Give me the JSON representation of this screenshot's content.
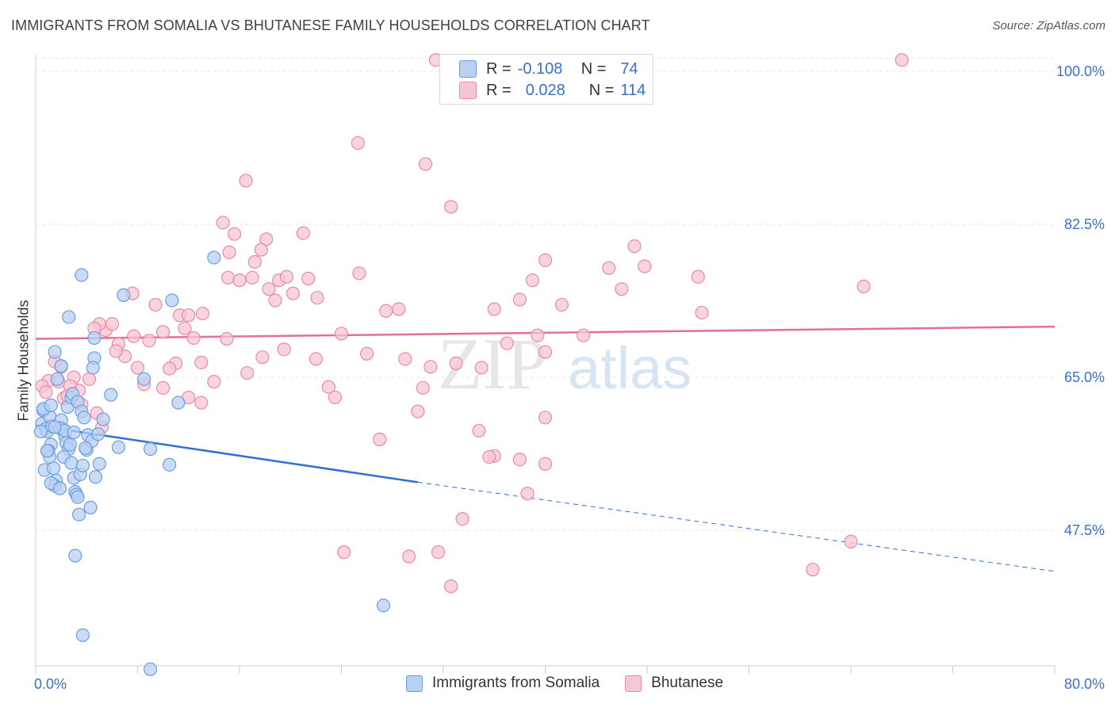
{
  "title": "IMMIGRANTS FROM SOMALIA VS BHUTANESE FAMILY HOUSEHOLDS CORRELATION CHART",
  "source": "Source: ZipAtlas.com",
  "watermark": {
    "zip": "ZIP",
    "atlas": "atlas"
  },
  "legend": {
    "rows": [
      {
        "r_label": "R =",
        "r_value": "-0.108",
        "n_label": "N =",
        "n_value": "74"
      },
      {
        "r_label": "R =",
        "r_value": "0.028",
        "n_label": "N =",
        "n_value": "114"
      }
    ]
  },
  "bottom_legend": [
    "Immigrants from Somalia",
    "Bhutanese"
  ],
  "chart_data": {
    "type": "scatter",
    "title": "IMMIGRANTS FROM SOMALIA VS BHUTANESE FAMILY HOUSEHOLDS CORRELATION CHART",
    "ylabel": "Family Households",
    "xlabel": "",
    "xlim": [
      0,
      80
    ],
    "ylim": [
      32,
      102
    ],
    "x_tick_labels": [
      "0.0%",
      "80.0%"
    ],
    "y_ticks": [
      47.5,
      65.0,
      82.5,
      100.0
    ],
    "y_tick_labels": [
      "47.5%",
      "65.0%",
      "82.5%",
      "100.0%"
    ],
    "grid": true,
    "legend_position": "top-center",
    "series": [
      {
        "name": "Immigrants from Somalia",
        "color": "#6b9de0",
        "fill": "#b8d0f2",
        "r": -0.108,
        "n": 74,
        "trend": {
          "x0": 0.0,
          "y0": 59.5,
          "x1": 30.0,
          "y1": 53.0,
          "dash_to_x": 80.0,
          "dash_to_y": 42.8
        },
        "points": [
          [
            0.5,
            59.7
          ],
          [
            0.6,
            61.2
          ],
          [
            0.8,
            59.1
          ],
          [
            0.9,
            58.8
          ],
          [
            1.1,
            60.5
          ],
          [
            1.2,
            57.3
          ],
          [
            1.3,
            59.4
          ],
          [
            1.0,
            56.6
          ],
          [
            0.7,
            54.4
          ],
          [
            1.4,
            54.6
          ],
          [
            1.6,
            53.2
          ],
          [
            1.5,
            52.6
          ],
          [
            1.2,
            52.9
          ],
          [
            2.0,
            60.1
          ],
          [
            2.1,
            59.0
          ],
          [
            2.3,
            58.3
          ],
          [
            2.4,
            57.5
          ],
          [
            2.6,
            56.8
          ],
          [
            2.2,
            55.9
          ],
          [
            2.8,
            55.2
          ],
          [
            3.0,
            53.5
          ],
          [
            3.1,
            51.9
          ],
          [
            3.2,
            51.6
          ],
          [
            3.4,
            49.3
          ],
          [
            3.5,
            53.9
          ],
          [
            3.7,
            54.9
          ],
          [
            4.0,
            56.7
          ],
          [
            4.3,
            50.1
          ],
          [
            2.5,
            61.6
          ],
          [
            2.8,
            62.7
          ],
          [
            2.9,
            63.1
          ],
          [
            3.3,
            62.2
          ],
          [
            3.6,
            61.1
          ],
          [
            3.8,
            60.4
          ],
          [
            4.1,
            58.4
          ],
          [
            4.4,
            57.7
          ],
          [
            1.7,
            64.8
          ],
          [
            2.0,
            66.3
          ],
          [
            1.5,
            67.9
          ],
          [
            2.6,
            71.9
          ],
          [
            4.6,
            69.5
          ],
          [
            3.6,
            76.7
          ],
          [
            6.9,
            74.4
          ],
          [
            10.7,
            73.8
          ],
          [
            14.0,
            78.7
          ],
          [
            4.6,
            67.2
          ],
          [
            4.5,
            66.1
          ],
          [
            8.5,
            64.8
          ],
          [
            11.2,
            62.1
          ],
          [
            5.9,
            63.0
          ],
          [
            0.6,
            61.4
          ],
          [
            1.2,
            61.8
          ],
          [
            1.9,
            59.2
          ],
          [
            2.7,
            57.3
          ],
          [
            3.9,
            56.9
          ],
          [
            5.0,
            55.1
          ],
          [
            6.5,
            57.0
          ],
          [
            9.0,
            56.8
          ],
          [
            10.5,
            55.0
          ],
          [
            4.7,
            53.6
          ],
          [
            3.3,
            51.3
          ],
          [
            1.9,
            52.3
          ],
          [
            1.1,
            55.9
          ],
          [
            0.9,
            56.6
          ],
          [
            2.3,
            58.9
          ],
          [
            3.0,
            58.7
          ],
          [
            1.5,
            59.3
          ],
          [
            0.4,
            58.8
          ],
          [
            4.9,
            58.5
          ],
          [
            27.3,
            38.9
          ],
          [
            3.1,
            44.6
          ],
          [
            3.7,
            35.5
          ],
          [
            9.0,
            31.6
          ],
          [
            5.3,
            60.2
          ]
        ]
      },
      {
        "name": "Bhutanese",
        "color": "#e98aa6",
        "fill": "#f7c6d4",
        "r": 0.028,
        "n": 114,
        "trend": {
          "x0": 0.0,
          "y0": 69.4,
          "x1": 80.0,
          "y1": 70.8
        },
        "points": [
          [
            31.4,
            101.3
          ],
          [
            43.0,
            101.2
          ],
          [
            68.0,
            101.3
          ],
          [
            25.3,
            91.8
          ],
          [
            30.6,
            89.4
          ],
          [
            32.6,
            84.5
          ],
          [
            16.5,
            87.5
          ],
          [
            14.7,
            82.7
          ],
          [
            15.6,
            81.4
          ],
          [
            18.1,
            80.8
          ],
          [
            21.0,
            81.5
          ],
          [
            15.2,
            79.3
          ],
          [
            17.2,
            78.2
          ],
          [
            17.7,
            79.6
          ],
          [
            9.4,
            73.3
          ],
          [
            10.0,
            70.2
          ],
          [
            11.3,
            72.1
          ],
          [
            13.1,
            72.3
          ],
          [
            15.1,
            76.4
          ],
          [
            16.0,
            76.1
          ],
          [
            17.0,
            76.4
          ],
          [
            18.3,
            75.1
          ],
          [
            18.8,
            73.8
          ],
          [
            19.1,
            76.1
          ],
          [
            19.7,
            76.5
          ],
          [
            20.2,
            74.6
          ],
          [
            21.4,
            76.3
          ],
          [
            22.1,
            74.1
          ],
          [
            25.4,
            76.9
          ],
          [
            27.5,
            72.6
          ],
          [
            28.5,
            72.8
          ],
          [
            24.0,
            70.0
          ],
          [
            19.5,
            68.2
          ],
          [
            22.0,
            67.1
          ],
          [
            26.0,
            67.7
          ],
          [
            29.0,
            67.1
          ],
          [
            31.0,
            66.2
          ],
          [
            33.0,
            66.6
          ],
          [
            35.0,
            66.1
          ],
          [
            37.0,
            68.9
          ],
          [
            36.0,
            72.8
          ],
          [
            38.0,
            73.9
          ],
          [
            39.0,
            76.1
          ],
          [
            40.0,
            78.4
          ],
          [
            39.4,
            69.8
          ],
          [
            41.3,
            73.3
          ],
          [
            40.0,
            67.9
          ],
          [
            43.0,
            69.8
          ],
          [
            45.0,
            77.5
          ],
          [
            47.0,
            80.0
          ],
          [
            47.8,
            77.7
          ],
          [
            46.0,
            75.1
          ],
          [
            52.0,
            76.5
          ],
          [
            52.3,
            72.4
          ],
          [
            40.0,
            60.4
          ],
          [
            36.0,
            56.0
          ],
          [
            38.0,
            55.6
          ],
          [
            38.6,
            51.7
          ],
          [
            40.0,
            55.1
          ],
          [
            30.0,
            61.1
          ],
          [
            27.0,
            57.9
          ],
          [
            13.0,
            66.7
          ],
          [
            11.0,
            66.6
          ],
          [
            10.0,
            63.8
          ],
          [
            8.5,
            64.2
          ],
          [
            8.0,
            66.1
          ],
          [
            7.0,
            67.4
          ],
          [
            6.5,
            68.8
          ],
          [
            5.5,
            70.4
          ],
          [
            5.0,
            71.1
          ],
          [
            4.6,
            70.6
          ],
          [
            6.0,
            71.1
          ],
          [
            7.6,
            74.6
          ],
          [
            12.0,
            72.1
          ],
          [
            11.7,
            70.6
          ],
          [
            15.0,
            69.4
          ],
          [
            16.6,
            65.5
          ],
          [
            14.0,
            64.5
          ],
          [
            17.8,
            67.3
          ],
          [
            13.0,
            62.1
          ],
          [
            12.0,
            62.7
          ],
          [
            3.0,
            65.0
          ],
          [
            2.0,
            66.2
          ],
          [
            1.5,
            66.8
          ],
          [
            1.0,
            64.6
          ],
          [
            0.5,
            64.0
          ],
          [
            0.8,
            63.3
          ],
          [
            2.2,
            62.6
          ],
          [
            3.4,
            63.5
          ],
          [
            4.8,
            60.9
          ],
          [
            5.2,
            59.3
          ],
          [
            3.6,
            61.9
          ],
          [
            2.5,
            62.9
          ],
          [
            1.8,
            64.5
          ],
          [
            2.7,
            64.0
          ],
          [
            4.2,
            64.8
          ],
          [
            6.3,
            68.0
          ],
          [
            7.7,
            69.7
          ],
          [
            10.5,
            66.0
          ],
          [
            8.9,
            69.2
          ],
          [
            12.4,
            69.5
          ],
          [
            23.0,
            63.9
          ],
          [
            23.5,
            62.7
          ],
          [
            30.4,
            63.8
          ],
          [
            34.8,
            58.9
          ],
          [
            35.6,
            55.9
          ],
          [
            33.5,
            48.8
          ],
          [
            24.2,
            45.0
          ],
          [
            29.3,
            44.5
          ],
          [
            32.6,
            41.1
          ],
          [
            31.6,
            45.0
          ],
          [
            61.0,
            43.0
          ],
          [
            64.0,
            46.2
          ],
          [
            65.0,
            75.4
          ]
        ]
      }
    ]
  }
}
